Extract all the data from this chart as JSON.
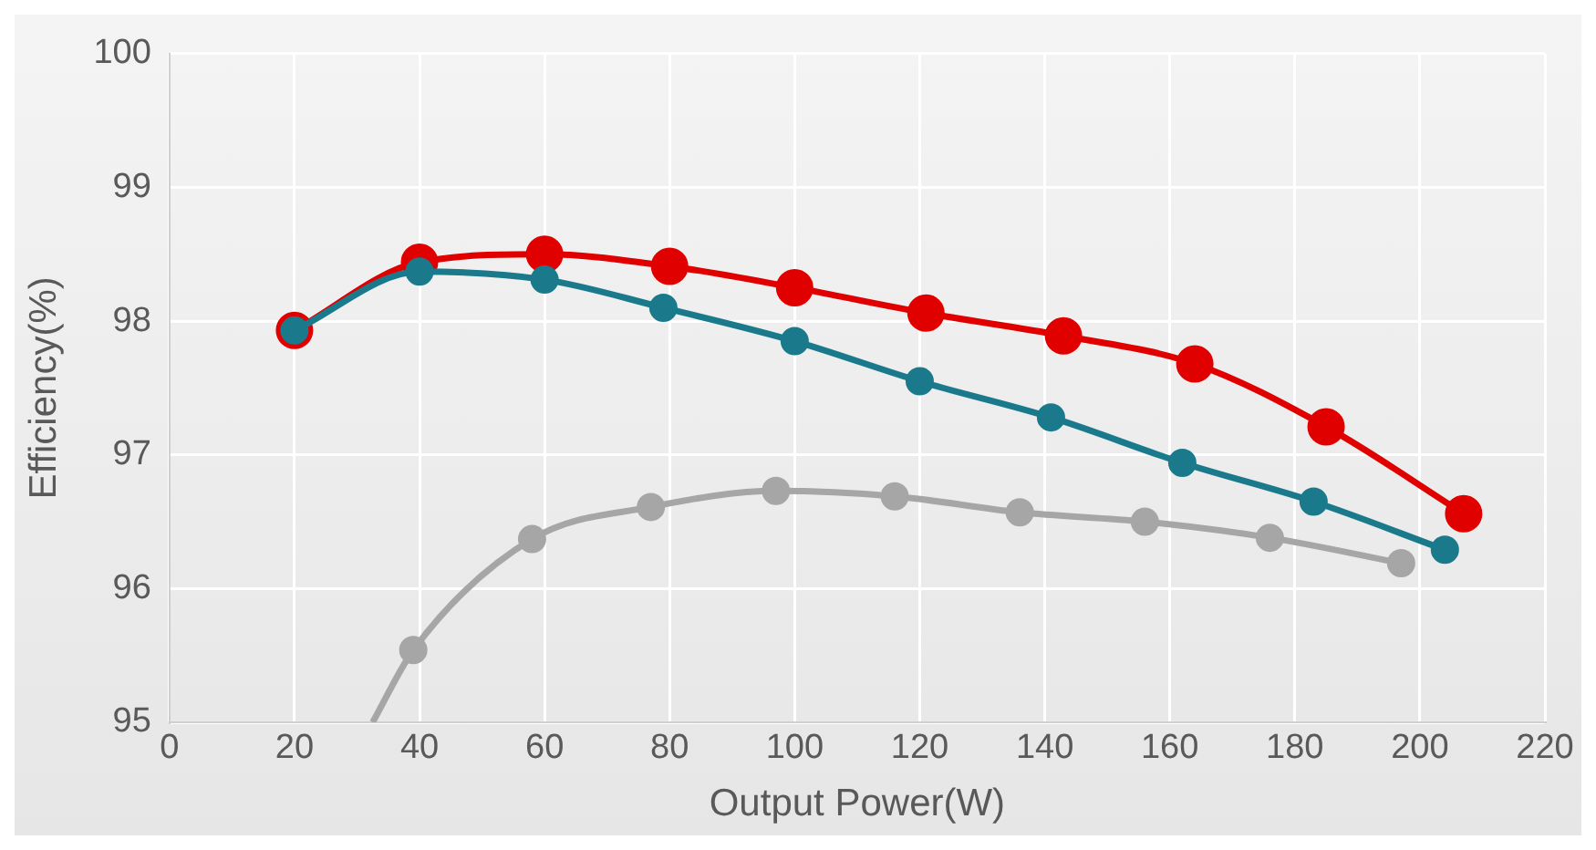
{
  "chart_data": {
    "type": "line",
    "xlabel": "Output Power(W)",
    "ylabel": "Efficiency(%)",
    "xlim": [
      0,
      220
    ],
    "xticks": [
      0,
      20,
      40,
      60,
      80,
      100,
      120,
      140,
      160,
      180,
      200,
      220
    ],
    "ylim": [
      95,
      100
    ],
    "yticks": [
      95,
      96,
      97,
      98,
      99,
      100
    ],
    "grid": true,
    "legend": false,
    "marker": "circle",
    "line_style": "solid",
    "series": [
      {
        "color": "#e00000",
        "x": [
          20,
          40,
          60,
          80,
          100,
          121,
          143,
          164,
          185,
          207
        ],
        "values": [
          97.93,
          98.44,
          98.5,
          98.41,
          98.25,
          98.06,
          97.89,
          97.68,
          97.21,
          96.56
        ]
      },
      {
        "color": "#1a7a8c",
        "x": [
          20,
          40,
          60,
          79,
          100,
          120,
          141,
          162,
          183,
          204
        ],
        "values": [
          97.93,
          98.37,
          98.31,
          98.1,
          97.85,
          97.55,
          97.28,
          96.94,
          96.65,
          96.29
        ]
      },
      {
        "color": "#a6a6a6",
        "x": [
          32.5,
          39,
          58,
          77,
          97,
          116,
          136,
          156,
          176,
          197
        ],
        "values": [
          95,
          95.54,
          96.37,
          96.61,
          96.73,
          96.69,
          96.57,
          96.5,
          96.38,
          96.19
        ]
      }
    ]
  }
}
